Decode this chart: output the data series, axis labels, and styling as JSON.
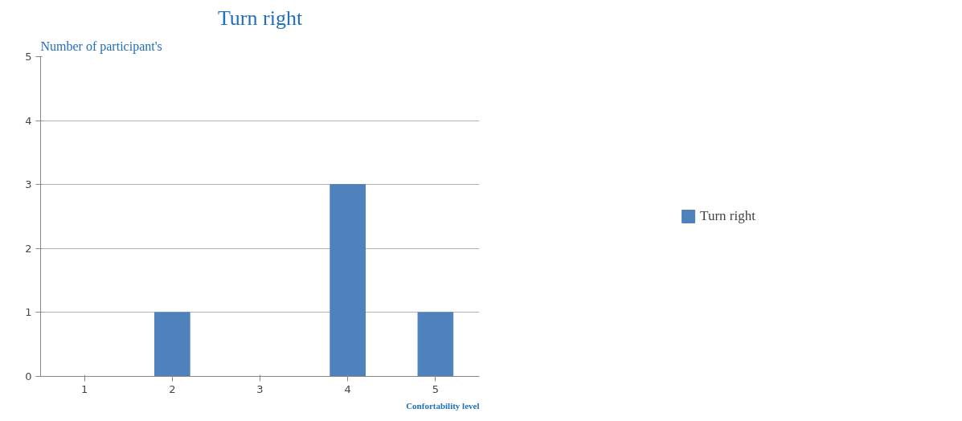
{
  "chart_data": {
    "type": "bar",
    "title": "Turn right",
    "ylabel": "Number of participant's",
    "xlabel": "Confortability level",
    "categories": [
      "1",
      "2",
      "3",
      "4",
      "5"
    ],
    "series": [
      {
        "name": "Turn right",
        "color": "#4f81bd",
        "values": [
          0,
          1,
          0,
          3,
          1
        ]
      }
    ],
    "ylim": [
      0,
      5
    ],
    "yticks": [
      0,
      1,
      2,
      3,
      4,
      5
    ],
    "grid": "y",
    "legend": "right"
  }
}
